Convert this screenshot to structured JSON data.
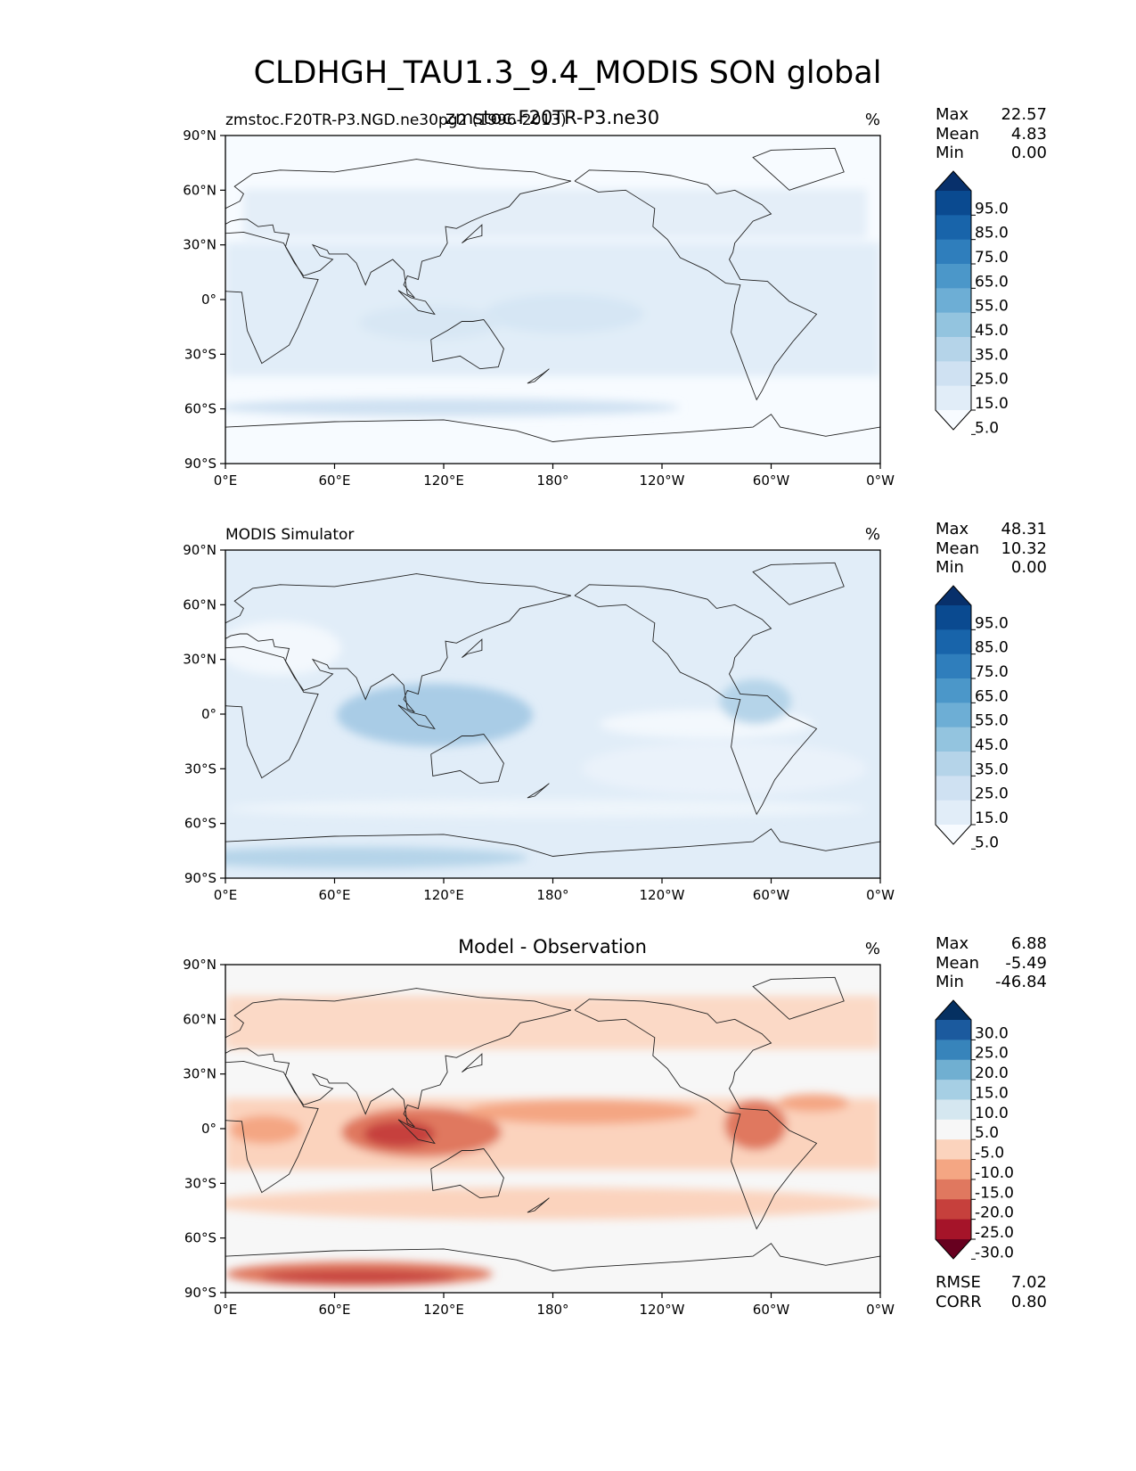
{
  "figure": {
    "title": "CLDHGH_TAU1.3_9.4_MODIS SON global"
  },
  "chart_data": [
    {
      "type": "heatmap",
      "panel": "test",
      "title": "zmstoc.F20TR-P3.ne30",
      "left_label": "zmstoc.F20TR-P3.NGD.ne30pg2 (1996-2013)",
      "units": "%",
      "stats": {
        "max_label": "Max",
        "max": "22.57",
        "mean_label": "Mean",
        "mean": "4.83",
        "min_label": "Min",
        "min": "0.00"
      },
      "x_ticks": [
        "0°E",
        "60°E",
        "120°E",
        "180°",
        "120°W",
        "60°W",
        "0°W"
      ],
      "y_ticks": [
        "90°N",
        "60°N",
        "30°N",
        "0°",
        "30°S",
        "60°S",
        "90°S"
      ],
      "xlim": [
        0,
        360
      ],
      "ylim": [
        -90,
        90
      ],
      "colorbar": {
        "ticks": [
          "95.0",
          "85.0",
          "75.0",
          "65.0",
          "55.0",
          "45.0",
          "35.0",
          "25.0",
          "15.0",
          "5.0"
        ],
        "colors": [
          "#f7fbff",
          "#e1edf8",
          "#cfe1f2",
          "#b5d4e9",
          "#93c4df",
          "#6daed5",
          "#4b97c9",
          "#2f7ebc",
          "#1864aa",
          "#0a4a90",
          "#08306b"
        ],
        "extend": "both"
      }
    },
    {
      "type": "heatmap",
      "panel": "reference",
      "title": "",
      "left_label": "MODIS Simulator",
      "units": "%",
      "stats": {
        "max_label": "Max",
        "max": "48.31",
        "mean_label": "Mean",
        "mean": "10.32",
        "min_label": "Min",
        "min": "0.00"
      },
      "x_ticks": [
        "0°E",
        "60°E",
        "120°E",
        "180°",
        "120°W",
        "60°W",
        "0°W"
      ],
      "y_ticks": [
        "90°N",
        "60°N",
        "30°N",
        "0°",
        "30°S",
        "60°S",
        "90°S"
      ],
      "xlim": [
        0,
        360
      ],
      "ylim": [
        -90,
        90
      ],
      "colorbar": {
        "ticks": [
          "95.0",
          "85.0",
          "75.0",
          "65.0",
          "55.0",
          "45.0",
          "35.0",
          "25.0",
          "15.0",
          "5.0"
        ],
        "colors": [
          "#f7fbff",
          "#e1edf8",
          "#cfe1f2",
          "#b5d4e9",
          "#93c4df",
          "#6daed5",
          "#4b97c9",
          "#2f7ebc",
          "#1864aa",
          "#0a4a90",
          "#08306b"
        ],
        "extend": "both"
      }
    },
    {
      "type": "heatmap",
      "panel": "diff",
      "title": "Model - Observation",
      "left_label": "",
      "units": "%",
      "stats": {
        "max_label": "Max",
        "max": "6.88",
        "mean_label": "Mean",
        "mean": "-5.49",
        "min_label": "Min",
        "min": "-46.84"
      },
      "x_ticks": [
        "0°E",
        "60°E",
        "120°E",
        "180°",
        "120°W",
        "60°W",
        "0°W"
      ],
      "y_ticks": [
        "90°N",
        "60°N",
        "30°N",
        "0°",
        "30°S",
        "60°S",
        "90°S"
      ],
      "xlim": [
        0,
        360
      ],
      "ylim": [
        -90,
        90
      ],
      "colorbar": {
        "ticks": [
          "30.0",
          "25.0",
          "20.0",
          "15.0",
          "10.0",
          "5.0",
          "-5.0",
          "-10.0",
          "-15.0",
          "-20.0",
          "-25.0",
          "-30.0"
        ],
        "colors": [
          "#67001f",
          "#a51429",
          "#c6403c",
          "#e0785f",
          "#f4a683",
          "#fbd3bd",
          "#f7f7f7",
          "#d5e7f0",
          "#a6cfe4",
          "#70afd1",
          "#3784bb",
          "#1b5a9e",
          "#053061"
        ],
        "extend": "both"
      },
      "metrics": {
        "rmse_label": "RMSE",
        "rmse": "7.02",
        "corr_label": "CORR",
        "corr": "0.80"
      }
    }
  ]
}
